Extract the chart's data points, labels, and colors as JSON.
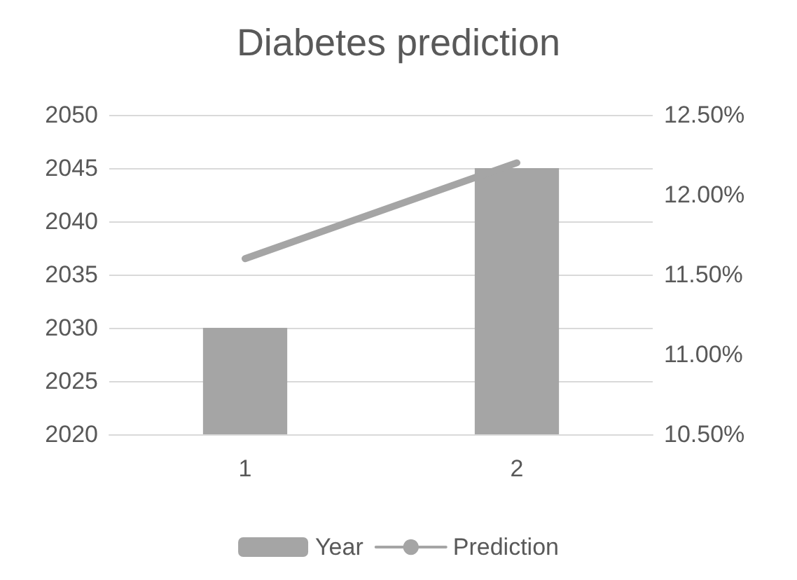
{
  "chart_data": {
    "type": "bar",
    "title": "Diabetes prediction",
    "categories": [
      "1",
      "2"
    ],
    "series": [
      {
        "name": "Year",
        "color": "#a5a5a5",
        "values": [
          2030,
          2045
        ]
      },
      {
        "name": "Prediction",
        "type": "line",
        "axis": "y2",
        "color": "#a5a5a5",
        "values": [
          11.6,
          12.2
        ]
      }
    ],
    "ylim": [
      2020,
      2050
    ],
    "yticks": [
      2020,
      2025,
      2030,
      2035,
      2040,
      2045,
      2050
    ],
    "y2lim": [
      10.5,
      12.5
    ],
    "y2ticks": [
      {
        "value": 10.5,
        "label": "10.50%"
      },
      {
        "value": 11,
        "label": "11.00%"
      },
      {
        "value": 11.5,
        "label": "11.50%"
      },
      {
        "value": 12,
        "label": "12.00%"
      },
      {
        "value": 12.5,
        "label": "12.50%"
      }
    ],
    "grid": "y",
    "legend": "bottom",
    "marker": "none"
  }
}
